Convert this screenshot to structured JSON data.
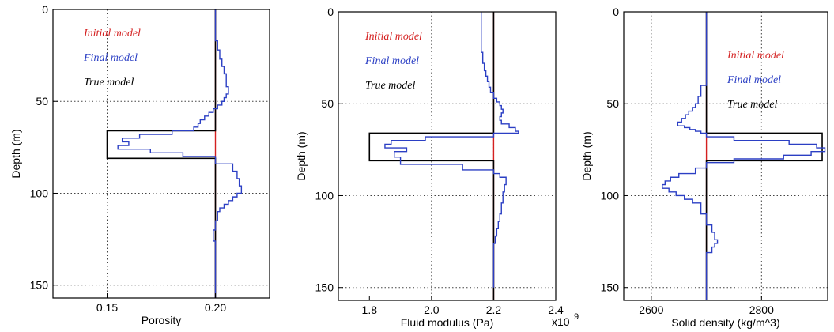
{
  "chart_data": [
    {
      "type": "line",
      "xlabel": "Porosity",
      "ylabel": "Depth (m)",
      "xlim": [
        0.125,
        0.225
      ],
      "ylim": [
        0,
        157
      ],
      "y_inverted": true,
      "grid": true,
      "x_grid_values": [
        0.15,
        0.2
      ],
      "y_grid_values": [
        50,
        100,
        150
      ],
      "x_ticks": [
        {
          "value": 0.15,
          "label": "0.15"
        },
        {
          "value": 0.2,
          "label": "0.20"
        }
      ],
      "y_ticks": [
        {
          "value": 0,
          "label": "0"
        },
        {
          "value": 50,
          "label": "50"
        },
        {
          "value": 100,
          "label": "100"
        },
        {
          "value": 150,
          "label": "150"
        }
      ],
      "legend": [
        "Initial model",
        "Final model",
        "True model"
      ],
      "series": [
        {
          "name": "Initial model",
          "color": "#d42020",
          "x": [
            0.2,
            0.2
          ],
          "y": [
            0,
            157
          ]
        },
        {
          "name": "True model",
          "color": "#000000",
          "x": [
            0.2,
            0.2,
            0.15,
            0.15,
            0.2,
            0.2
          ],
          "y": [
            0,
            66,
            66,
            81,
            81,
            157
          ]
        },
        {
          "name": "Final model",
          "color": "#2b3fc4",
          "x": [
            0.2,
            0.2,
            0.201,
            0.202,
            0.203,
            0.204,
            0.205,
            0.205,
            0.206,
            0.205,
            0.204,
            0.203,
            0.201,
            0.199,
            0.197,
            0.195,
            0.193,
            0.192,
            0.19,
            0.18,
            0.165,
            0.157,
            0.16,
            0.155,
            0.17,
            0.185,
            0.2,
            0.208,
            0.21,
            0.211,
            0.212,
            0.21,
            0.208,
            0.206,
            0.204,
            0.202,
            0.201,
            0.2,
            0.199,
            0.2,
            0.2
          ],
          "y": [
            0,
            12,
            17,
            22,
            27,
            31,
            35,
            38,
            42,
            46,
            48,
            50,
            52,
            54,
            56,
            58,
            60,
            62,
            64,
            66,
            68,
            70,
            72,
            74,
            76,
            78,
            80,
            84,
            88,
            92,
            96,
            100,
            102,
            104,
            106,
            108,
            110,
            115,
            120,
            126,
            157
          ]
        }
      ]
    },
    {
      "type": "line",
      "xlabel": "Fluid modulus (Pa)",
      "ylabel": "Depth (m)",
      "x_exponent": "x10^9",
      "xlim": [
        1.7,
        2.4
      ],
      "ylim": [
        0,
        157
      ],
      "y_inverted": true,
      "grid": true,
      "x_grid_values": [
        2.0,
        2.2
      ],
      "y_grid_values": [
        50,
        100,
        150
      ],
      "x_ticks": [
        {
          "value": 1.8,
          "label": "1.8"
        },
        {
          "value": 2.0,
          "label": "2.0"
        },
        {
          "value": 2.2,
          "label": "2.2"
        },
        {
          "value": 2.4,
          "label": "2.4"
        }
      ],
      "y_ticks": [
        {
          "value": 0,
          "label": "0"
        },
        {
          "value": 50,
          "label": "50"
        },
        {
          "value": 100,
          "label": "100"
        },
        {
          "value": 150,
          "label": "150"
        }
      ],
      "legend": [
        "Initial model",
        "Final model",
        "True model"
      ],
      "series": [
        {
          "name": "Initial model",
          "color": "#d42020",
          "x": [
            2.2,
            2.2
          ],
          "y": [
            0,
            157
          ]
        },
        {
          "name": "True model",
          "color": "#000000",
          "x": [
            2.2,
            2.2,
            1.8,
            1.8,
            2.2,
            2.2
          ],
          "y": [
            0,
            66,
            66,
            81,
            81,
            157
          ]
        },
        {
          "name": "Final model",
          "color": "#2b3fc4",
          "x": [
            2.16,
            2.16,
            2.165,
            2.17,
            2.175,
            2.18,
            2.185,
            2.19,
            2.2,
            2.21,
            2.22,
            2.225,
            2.23,
            2.225,
            2.22,
            2.225,
            2.25,
            2.27,
            2.28,
            2.2,
            1.98,
            1.87,
            1.85,
            1.92,
            1.88,
            1.9,
            2.1,
            2.2,
            2.22,
            2.24,
            2.235,
            2.23,
            2.225,
            2.22,
            2.215,
            2.21,
            2.205,
            2.2,
            2.2,
            2.2
          ],
          "y": [
            0,
            15,
            22,
            28,
            32,
            35,
            38,
            41,
            44,
            47,
            49,
            51,
            53,
            55,
            57,
            59,
            61,
            63,
            65,
            66,
            68,
            70,
            72,
            74,
            76,
            79,
            83,
            86,
            88,
            90,
            94,
            98,
            104,
            110,
            114,
            118,
            122,
            126,
            130,
            150
          ]
        }
      ]
    },
    {
      "type": "line",
      "xlabel": "Solid density (kg/m^3)",
      "ylabel": "Depth (m)",
      "xlim": [
        2550,
        2920
      ],
      "ylim": [
        0,
        157
      ],
      "y_inverted": true,
      "grid": true,
      "x_grid_values": [
        2600,
        2800
      ],
      "y_grid_values": [
        50,
        100,
        150
      ],
      "x_ticks": [
        {
          "value": 2600,
          "label": "2600"
        },
        {
          "value": 2800,
          "label": "2800"
        }
      ],
      "y_ticks": [
        {
          "value": 0,
          "label": "0"
        },
        {
          "value": 50,
          "label": "50"
        },
        {
          "value": 100,
          "label": "100"
        },
        {
          "value": 150,
          "label": "150"
        }
      ],
      "legend": [
        "Initial model",
        "Final model",
        "True model"
      ],
      "series": [
        {
          "name": "Initial model",
          "color": "#d42020",
          "x": [
            2700,
            2700
          ],
          "y": [
            0,
            157
          ]
        },
        {
          "name": "True model",
          "color": "#000000",
          "x": [
            2700,
            2700,
            2910,
            2910,
            2700,
            2700
          ],
          "y": [
            0,
            66,
            66,
            81,
            81,
            157
          ]
        },
        {
          "name": "Final model",
          "color": "#2b3fc4",
          "x": [
            2700,
            2700,
            2690,
            2685,
            2680,
            2675,
            2668,
            2662,
            2655,
            2648,
            2660,
            2670,
            2680,
            2690,
            2700,
            2750,
            2850,
            2900,
            2915,
            2890,
            2840,
            2750,
            2700,
            2680,
            2650,
            2635,
            2625,
            2620,
            2632,
            2645,
            2660,
            2675,
            2690,
            2700,
            2710,
            2715,
            2720,
            2715,
            2710,
            2700,
            2700
          ],
          "y": [
            0,
            30,
            40,
            46,
            50,
            52,
            54,
            56,
            58,
            60,
            62,
            63,
            64,
            65,
            66,
            68,
            70,
            72,
            74,
            76,
            78,
            80,
            82,
            85,
            88,
            90,
            92,
            94,
            96,
            98,
            100,
            102,
            104,
            110,
            116,
            120,
            124,
            126,
            128,
            131,
            157
          ]
        }
      ]
    }
  ],
  "colors": {
    "initial": "#d42020",
    "final": "#2b3fc4",
    "true": "#000000",
    "grid": "#444444"
  }
}
